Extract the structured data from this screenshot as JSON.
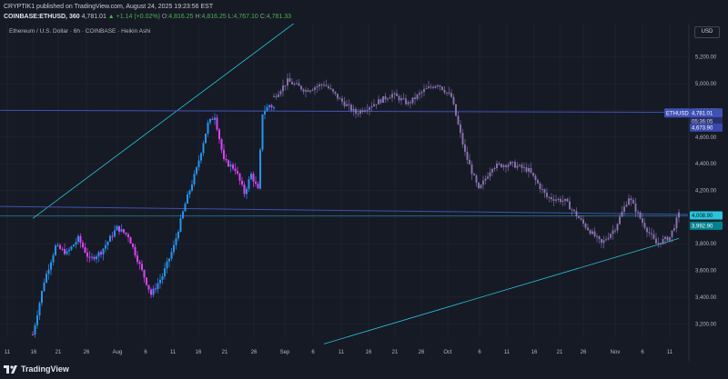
{
  "header": {
    "line1": "CRYPTIK1 published on TradingView.com, August 24, 2025 19:23:56 EST",
    "symbol": "COINBASE:ETHUSD, 360",
    "last": "4,781.01",
    "change": "▲ +1.14 (+0.02%)",
    "o_label": "O:",
    "o_value": "4,816.25",
    "h_label": "H:",
    "h_value": "4,816.25",
    "l_label": "L:",
    "l_value": "4,767.10",
    "c_label": "C:",
    "c_value": "4,781.33"
  },
  "legend_title": "Ethereum / U.S. Dollar · 6h · COINBASE · Heikin Ashi",
  "currency_label": "USD",
  "footer": {
    "brand": "TradingView"
  },
  "colors": {
    "background": "#161a25",
    "bull_candle": "#2196f3",
    "bear_candle": "#e040fb",
    "projection": "#9c82c8",
    "trendline": "#26c6da",
    "level_line": "#3f51b5",
    "cyan_tag": "#26c6da",
    "ethusd_tag": "#3f51b5"
  },
  "chart_data": {
    "type": "candlestick",
    "title": "Ethereum / U.S. Dollar · 6h · COINBASE · Heikin Ashi",
    "ylim": [
      3100,
      5450
    ],
    "y_ticks": [
      3200,
      3400,
      3600,
      3800,
      4000,
      4200,
      4400,
      4600,
      4800,
      5000,
      5200
    ],
    "y_tick_labels": [
      "3,200.00",
      "3,400.00",
      "3,600.00",
      "3,800.00",
      "4,000.00",
      "4,200.00",
      "4,400.00",
      "4,600.00",
      "4,800.00",
      "5,000.00",
      "5,200.00"
    ],
    "x_tick_labels": [
      "11",
      "16",
      "21",
      "26",
      "Aug",
      "6",
      "11",
      "16",
      "21",
      "26",
      "Sep",
      "6",
      "11",
      "16",
      "21",
      "26",
      "Oct",
      "6",
      "11",
      "16",
      "21",
      "26",
      "Nov",
      "6",
      "11"
    ],
    "price_tags": {
      "symbol": "ETHUSD",
      "last": "4,781.01",
      "countdown": "05:36:05",
      "ethusd_lower": "4,673.90",
      "cyan_upper": "4,008.90",
      "cyan_lower": "3,992.90"
    },
    "horizontal_levels": [
      4800,
      4080,
      4020
    ],
    "actual_key_points": [
      {
        "t": 0,
        "p": 3120
      },
      {
        "t": 5,
        "p": 3520
      },
      {
        "t": 10,
        "p": 3780
      },
      {
        "t": 15,
        "p": 3730
      },
      {
        "t": 20,
        "p": 3840
      },
      {
        "t": 25,
        "p": 3680
      },
      {
        "t": 30,
        "p": 3740
      },
      {
        "t": 37,
        "p": 3920
      },
      {
        "t": 42,
        "p": 3860
      },
      {
        "t": 47,
        "p": 3640
      },
      {
        "t": 52,
        "p": 3420
      },
      {
        "t": 57,
        "p": 3560
      },
      {
        "t": 62,
        "p": 3780
      },
      {
        "t": 67,
        "p": 4100
      },
      {
        "t": 72,
        "p": 4360
      },
      {
        "t": 77,
        "p": 4700
      },
      {
        "t": 80,
        "p": 4760
      },
      {
        "t": 84,
        "p": 4420
      },
      {
        "t": 89,
        "p": 4360
      },
      {
        "t": 93,
        "p": 4180
      },
      {
        "t": 96,
        "p": 4320
      },
      {
        "t": 99,
        "p": 4200
      },
      {
        "t": 101,
        "p": 4780
      },
      {
        "t": 104,
        "p": 4840
      },
      {
        "t": 106,
        "p": 4820
      }
    ],
    "projection_key_points": [
      {
        "t": 106,
        "p": 4900
      },
      {
        "t": 112,
        "p": 5020
      },
      {
        "t": 120,
        "p": 4950
      },
      {
        "t": 128,
        "p": 5000
      },
      {
        "t": 135,
        "p": 4880
      },
      {
        "t": 142,
        "p": 4780
      },
      {
        "t": 150,
        "p": 4850
      },
      {
        "t": 158,
        "p": 4920
      },
      {
        "t": 165,
        "p": 4850
      },
      {
        "t": 172,
        "p": 4950
      },
      {
        "t": 178,
        "p": 5000
      },
      {
        "t": 184,
        "p": 4900
      },
      {
        "t": 190,
        "p": 4480
      },
      {
        "t": 196,
        "p": 4200
      },
      {
        "t": 202,
        "p": 4380
      },
      {
        "t": 210,
        "p": 4400
      },
      {
        "t": 218,
        "p": 4350
      },
      {
        "t": 226,
        "p": 4150
      },
      {
        "t": 234,
        "p": 4120
      },
      {
        "t": 242,
        "p": 3950
      },
      {
        "t": 250,
        "p": 3800
      },
      {
        "t": 256,
        "p": 3920
      },
      {
        "t": 262,
        "p": 4150
      },
      {
        "t": 268,
        "p": 3960
      },
      {
        "t": 274,
        "p": 3800
      },
      {
        "t": 280,
        "p": 3850
      },
      {
        "t": 284,
        "p": 4020
      }
    ],
    "trendlines": [
      {
        "name": "upper-channel",
        "from": {
          "t": 0,
          "p": 3990
        },
        "to": {
          "t": 150,
          "p": 5900
        }
      },
      {
        "name": "lower-channel",
        "from": {
          "t": 128,
          "p": 3050
        },
        "to": {
          "t": 284,
          "p": 3840
        }
      }
    ]
  }
}
